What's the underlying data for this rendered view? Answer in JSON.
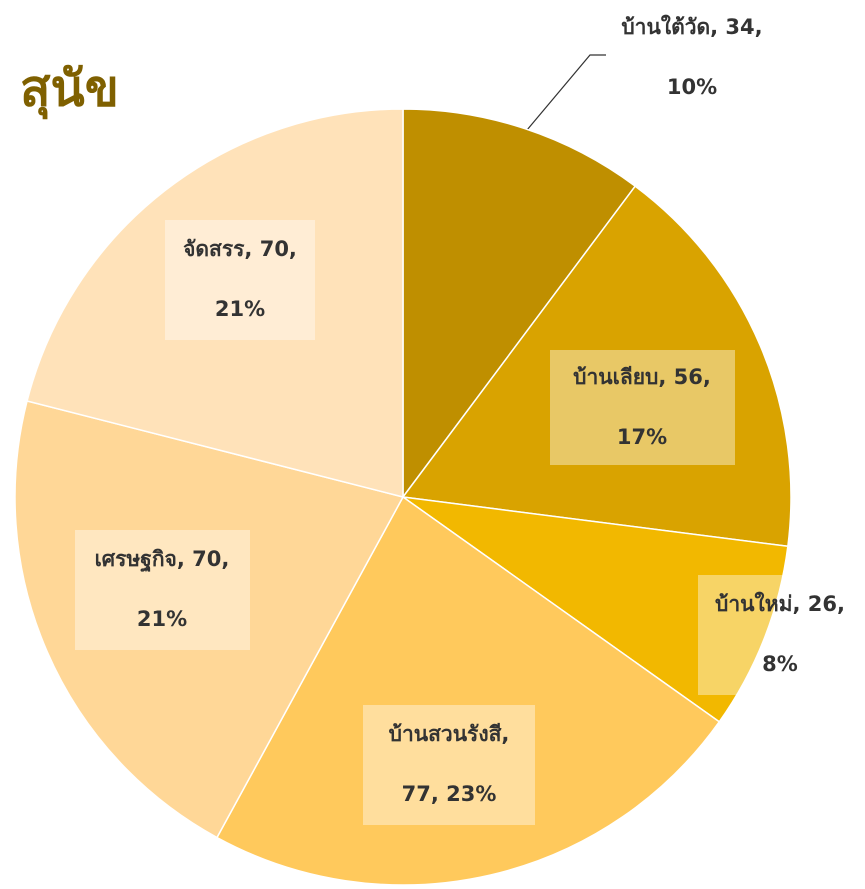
{
  "chart_data": {
    "type": "pie",
    "title": "สุนัข",
    "values": [
      34,
      56,
      26,
      77,
      70,
      70
    ],
    "value_labels": [
      [
        "บ้านใต้วัด, 34,",
        "10%"
      ],
      [
        "บ้านเลียบ, 56,",
        "17%"
      ],
      [
        "บ้านใหม่, 26,",
        "8%"
      ],
      [
        "บ้านสวนรังสี,",
        "77, 23%"
      ],
      [
        "เศรษฐกิจ, 70,",
        "21%"
      ],
      [
        "จัดสรร, 70,",
        "21%"
      ]
    ],
    "colors": [
      "#bf8f00",
      "#d9a300",
      "#f2b800",
      "#ffc95c",
      "#ffd797",
      "#ffe2b9"
    ]
  }
}
